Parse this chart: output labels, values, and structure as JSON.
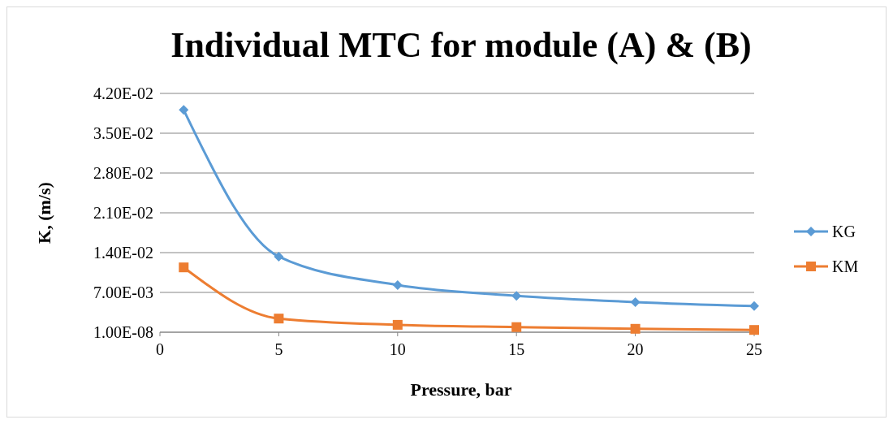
{
  "chart_data": {
    "type": "line",
    "title": "Individual MTC for module (A) & (B)",
    "xlabel": "Pressure, bar",
    "ylabel": "K, (m/s)",
    "x": [
      1,
      5,
      10,
      15,
      20,
      25
    ],
    "series": [
      {
        "name": "KG",
        "color": "#5b9bd5",
        "marker": "diamond",
        "values": [
          0.0391,
          0.0133,
          0.0083,
          0.0064,
          0.0053,
          0.0046
        ]
      },
      {
        "name": "KM",
        "color": "#ed7d31",
        "marker": "square",
        "values": [
          0.0114,
          0.0024,
          0.0013,
          0.0009,
          0.0006,
          0.0004
        ]
      }
    ],
    "xlim": [
      0,
      25
    ],
    "xticks": [
      0,
      5,
      10,
      15,
      20,
      25
    ],
    "ylim": [
      1e-08,
      0.042
    ],
    "yticks": [
      {
        "value": 1e-08,
        "label": "1.00E-08"
      },
      {
        "value": 0.007,
        "label": "7.00E-03"
      },
      {
        "value": 0.014,
        "label": "1.40E-02"
      },
      {
        "value": 0.021,
        "label": "2.10E-02"
      },
      {
        "value": 0.028,
        "label": "2.80E-02"
      },
      {
        "value": 0.035,
        "label": "3.50E-02"
      },
      {
        "value": 0.042,
        "label": "4.20E-02"
      }
    ],
    "grid": "y",
    "legend": "right",
    "line_style": "solid"
  }
}
